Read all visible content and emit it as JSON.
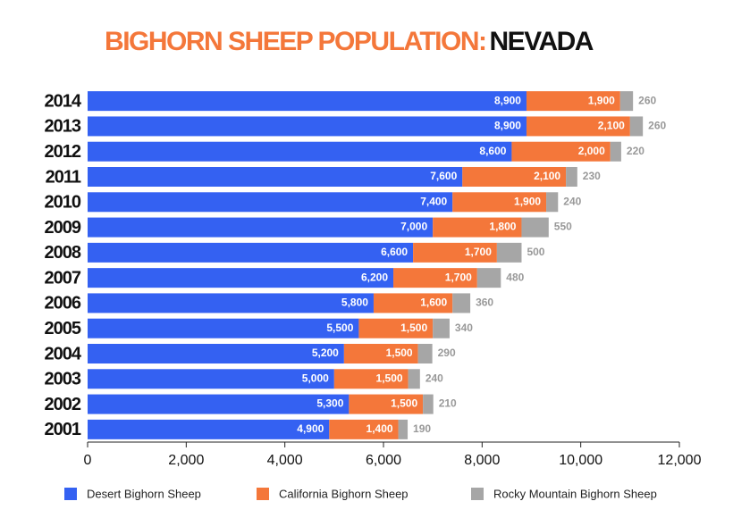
{
  "chart_data": {
    "type": "stacked-bar-horizontal",
    "title": "BIGHORN SHEEP POPULATION:",
    "title_highlight": "NEVADA",
    "categories": [
      "2014",
      "2013",
      "2012",
      "2011",
      "2010",
      "2009",
      "2008",
      "2007",
      "2006",
      "2005",
      "2004",
      "2003",
      "2002",
      "2001"
    ],
    "series": [
      {
        "name": "Desert Bighorn Sheep",
        "color": "#3461f2",
        "values": [
          8900,
          8900,
          8600,
          7600,
          7400,
          7000,
          6600,
          6200,
          5800,
          5500,
          5200,
          5000,
          5300,
          4900
        ],
        "value_labels": [
          "8,900",
          "8,900",
          "8,600",
          "7,600",
          "7,400",
          "7,000",
          "6,600",
          "6,200",
          "5,800",
          "5,500",
          "5,200",
          "5,000",
          "5,300",
          "4,900"
        ]
      },
      {
        "name": "California Bighorn Sheep",
        "color": "#f4773a",
        "values": [
          1900,
          2100,
          2000,
          2100,
          1900,
          1800,
          1700,
          1700,
          1600,
          1500,
          1500,
          1500,
          1500,
          1400
        ],
        "value_labels": [
          "1,900",
          "2,100",
          "2,000",
          "2,100",
          "1,900",
          "1,800",
          "1,700",
          "1,700",
          "1,600",
          "1,500",
          "1,500",
          "1,500",
          "1,500",
          "1,400"
        ]
      },
      {
        "name": "Rocky Mountain Bighorn Sheep",
        "color": "#a6a6a6",
        "values": [
          260,
          260,
          220,
          230,
          240,
          550,
          500,
          480,
          360,
          340,
          290,
          240,
          210,
          190
        ]
      }
    ],
    "xlim": [
      0,
      12000
    ],
    "xticks": [
      0,
      {
        "value": 2000,
        "label": "2,000"
      },
      {
        "value": 4000,
        "label": "4,000"
      },
      {
        "value": 6000,
        "label": "6,000"
      },
      {
        "value": 8000,
        "label": "8,000"
      },
      {
        "value": 10000,
        "label": "10,000"
      },
      {
        "value": 12000,
        "label": "12,000"
      }
    ],
    "legend": "bottom"
  }
}
